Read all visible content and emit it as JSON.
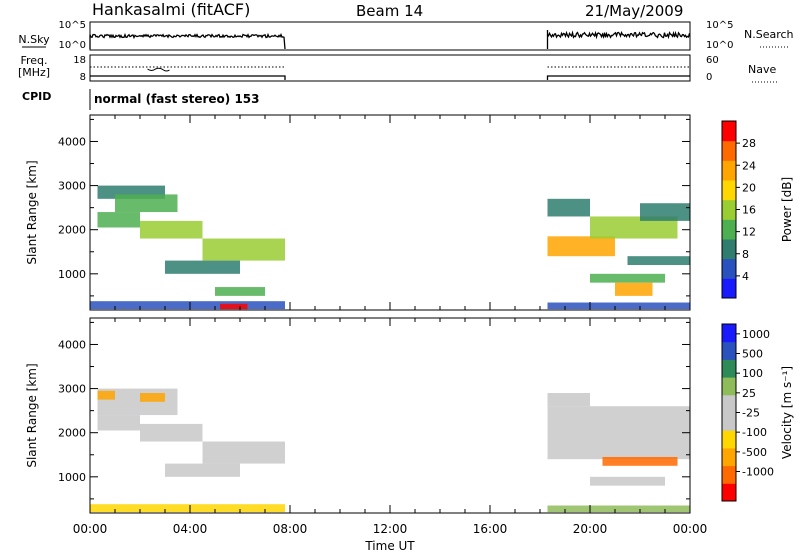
{
  "header": {
    "station": "Hankasalmi (fitACF)",
    "beam": "Beam 14",
    "date": "21/May/2009"
  },
  "panels": {
    "nsky_label": "N.Sky",
    "nsky_ticks": [
      "10^5",
      "10^0"
    ],
    "nsearch_label": "N.Search",
    "nsearch_ticks": [
      "10^5",
      "10^0"
    ],
    "freq_label_1": "Freq.",
    "freq_label_2": "[MHz]",
    "freq_ticks": [
      "18",
      "8"
    ],
    "nave_label": "Nave",
    "nave_ticks": [
      "60",
      "0"
    ],
    "cpid_label": "CPID",
    "cpid_text": "normal (fast stereo) 153"
  },
  "colors": {
    "power": [
      "#1a1aff",
      "#2a52be",
      "#2e7d6f",
      "#4caf50",
      "#9acd32",
      "#ffd700",
      "#ffa500",
      "#ff6a00",
      "#ff0000"
    ],
    "velocity": [
      "#ff0000",
      "#ff6a00",
      "#ffa500",
      "#ffd700",
      "#c8c8c8",
      "#c8c8c8",
      "#8fbc5a",
      "#2e8b57",
      "#2a52be",
      "#1a1aff"
    ]
  },
  "chart_data": [
    {
      "type": "heatmap",
      "name": "power",
      "ylabel": "Slant Range [km]",
      "xlabel": "Time UT",
      "x_ticks": [
        "00:00",
        "04:00",
        "08:00",
        "12:00",
        "16:00",
        "20:00",
        "00:00"
      ],
      "y_ticks": [
        "4000",
        "3000",
        "2000",
        "1000"
      ],
      "xlim_hours": [
        0,
        24
      ],
      "ylim_km": [
        180,
        4600
      ],
      "colorbar_label": "Power [dB]",
      "colorbar_ticks": [
        "28",
        "24",
        "20",
        "16",
        "12",
        "8",
        "4"
      ],
      "data_gap_hours": [
        7.8,
        18.3
      ],
      "bands": [
        {
          "t0": 0.3,
          "t1": 3.0,
          "r0": 2700,
          "r1": 3000,
          "level": 2
        },
        {
          "t0": 1.0,
          "t1": 3.5,
          "r0": 2400,
          "r1": 2800,
          "level": 3
        },
        {
          "t0": 0.3,
          "t1": 2.0,
          "r0": 2050,
          "r1": 2400,
          "level": 3
        },
        {
          "t0": 2.0,
          "t1": 4.5,
          "r0": 1800,
          "r1": 2200,
          "level": 4
        },
        {
          "t0": 4.5,
          "t1": 7.8,
          "r0": 1300,
          "r1": 1800,
          "level": 4
        },
        {
          "t0": 3.0,
          "t1": 6.0,
          "r0": 1000,
          "r1": 1300,
          "level": 2
        },
        {
          "t0": 5.0,
          "t1": 7.0,
          "r0": 500,
          "r1": 700,
          "level": 3
        },
        {
          "t0": 0.0,
          "t1": 7.8,
          "r0": 200,
          "r1": 380,
          "level": 1
        },
        {
          "t0": 5.2,
          "t1": 6.3,
          "r0": 200,
          "r1": 320,
          "level": 8
        },
        {
          "t0": 18.3,
          "t1": 21.0,
          "r0": 1400,
          "r1": 1850,
          "level": 6
        },
        {
          "t0": 20.0,
          "t1": 23.5,
          "r0": 1800,
          "r1": 2300,
          "level": 4
        },
        {
          "t0": 18.3,
          "t1": 20.0,
          "r0": 2300,
          "r1": 2700,
          "level": 2
        },
        {
          "t0": 22.0,
          "t1": 24.0,
          "r0": 2200,
          "r1": 2600,
          "level": 2
        },
        {
          "t0": 20.0,
          "t1": 23.0,
          "r0": 800,
          "r1": 1000,
          "level": 3
        },
        {
          "t0": 21.0,
          "t1": 22.5,
          "r0": 500,
          "r1": 800,
          "level": 6
        },
        {
          "t0": 21.5,
          "t1": 24.0,
          "r0": 1200,
          "r1": 1400,
          "level": 2
        },
        {
          "t0": 18.3,
          "t1": 24.0,
          "r0": 200,
          "r1": 350,
          "level": 1
        }
      ]
    },
    {
      "type": "heatmap",
      "name": "velocity",
      "ylabel": "Slant Range [km]",
      "xlabel": "Time UT",
      "x_ticks": [
        "00:00",
        "04:00",
        "08:00",
        "12:00",
        "16:00",
        "20:00",
        "00:00"
      ],
      "y_ticks": [
        "4000",
        "3000",
        "2000",
        "1000"
      ],
      "xlim_hours": [
        0,
        24
      ],
      "ylim_km": [
        180,
        4600
      ],
      "colorbar_label": "Velocity [m s⁻¹]",
      "colorbar_ticks": [
        "1000",
        "500",
        "100",
        "25",
        "-25",
        "-100",
        "-500",
        "-1000"
      ],
      "data_gap_hours": [
        7.8,
        18.3
      ],
      "bands": [
        {
          "t0": 0.3,
          "t1": 3.5,
          "r0": 2400,
          "r1": 3000,
          "level": 5
        },
        {
          "t0": 0.3,
          "t1": 2.0,
          "r0": 2050,
          "r1": 2400,
          "level": 4
        },
        {
          "t0": 2.0,
          "t1": 4.5,
          "r0": 1800,
          "r1": 2200,
          "level": 4
        },
        {
          "t0": 4.5,
          "t1": 7.8,
          "r0": 1300,
          "r1": 1800,
          "level": 4
        },
        {
          "t0": 3.0,
          "t1": 6.0,
          "r0": 1000,
          "r1": 1300,
          "level": 5
        },
        {
          "t0": 0.3,
          "t1": 1.0,
          "r0": 2750,
          "r1": 2950,
          "level": 2
        },
        {
          "t0": 2.0,
          "t1": 3.0,
          "r0": 2700,
          "r1": 2900,
          "level": 2
        },
        {
          "t0": 0.0,
          "t1": 7.8,
          "r0": 200,
          "r1": 380,
          "level": 3
        },
        {
          "t0": 18.3,
          "t1": 24.0,
          "r0": 1400,
          "r1": 2600,
          "level": 4
        },
        {
          "t0": 20.5,
          "t1": 23.5,
          "r0": 1250,
          "r1": 1450,
          "level": 1
        },
        {
          "t0": 20.0,
          "t1": 23.0,
          "r0": 800,
          "r1": 1000,
          "level": 5
        },
        {
          "t0": 18.3,
          "t1": 20.0,
          "r0": 2600,
          "r1": 2900,
          "level": 4
        },
        {
          "t0": 18.3,
          "t1": 24.0,
          "r0": 200,
          "r1": 350,
          "level": 6
        }
      ]
    }
  ]
}
